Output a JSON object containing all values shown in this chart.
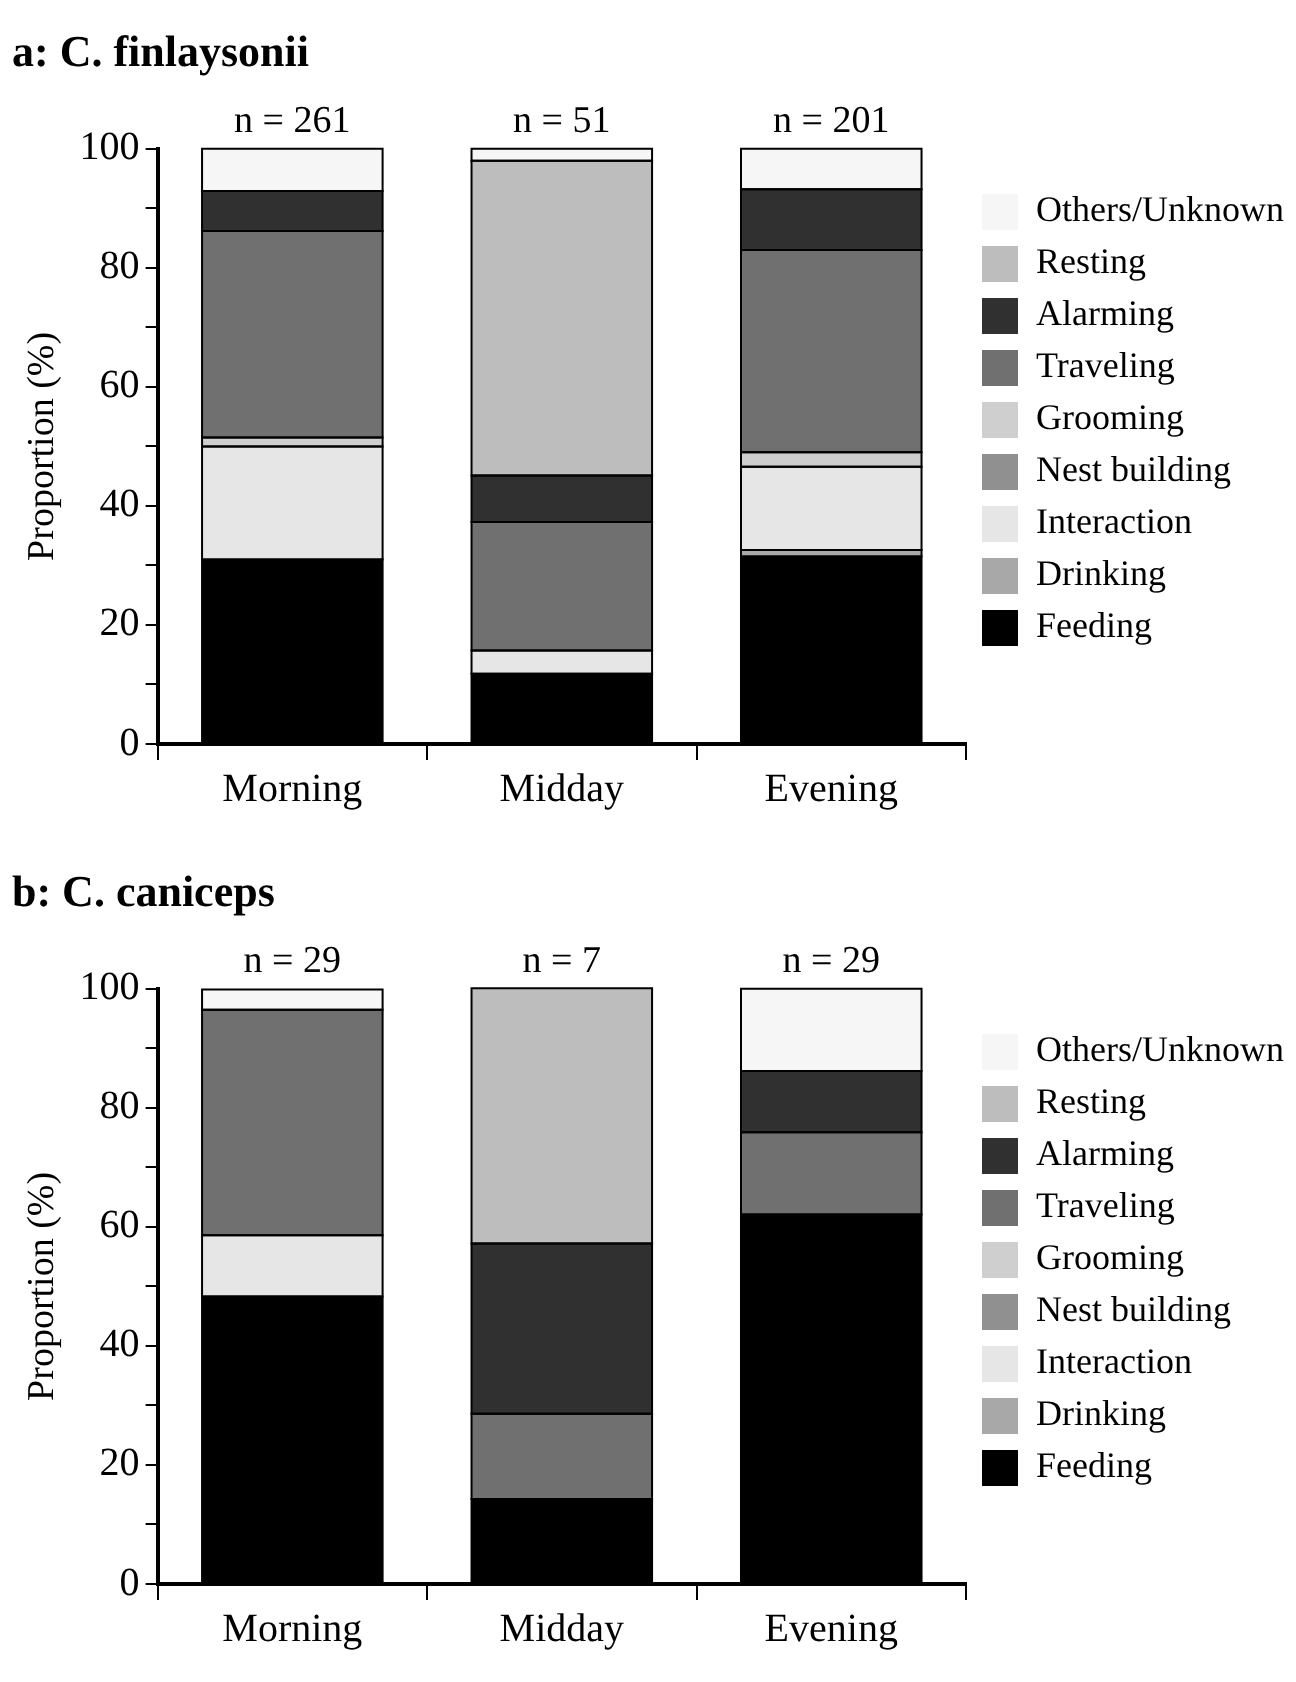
{
  "chart_data": [
    {
      "type": "bar",
      "title": "a: C. finlaysonii",
      "ylabel": "Proportion (%)",
      "categories": [
        "Morning",
        "Midday",
        "Evening"
      ],
      "stacked": true,
      "legend": "right",
      "grid": false,
      "ylim": [
        0,
        100
      ],
      "yticks": [
        0,
        {
          "value": 10,
          "label": null
        },
        20,
        {
          "value": 30,
          "label": null
        },
        40,
        {
          "value": 50,
          "label": null
        },
        60,
        {
          "value": 70,
          "label": null
        },
        80,
        {
          "value": 90,
          "label": null
        },
        100
      ],
      "annotations": [
        {
          "text": "n = 261",
          "x": "Morning",
          "y": 100
        },
        {
          "text": "n = 51",
          "x": "Midday",
          "y": 100
        },
        {
          "text": "n = 201",
          "x": "Evening",
          "y": 100
        }
      ],
      "series": [
        {
          "name": "Feeding",
          "color": "#000000",
          "values": [
            31,
            11.8,
            31.5
          ]
        },
        {
          "name": "Drinking",
          "color": "#a8a8a8",
          "values": [
            0,
            0,
            1.1
          ]
        },
        {
          "name": "Interaction",
          "color": "#e6e6e6",
          "values": [
            19,
            3.9,
            14
          ]
        },
        {
          "name": "Nest building",
          "color": "#909090",
          "values": [
            0,
            0,
            0
          ]
        },
        {
          "name": "Grooming",
          "color": "#cfcfcf",
          "values": [
            1.5,
            0,
            2.4
          ]
        },
        {
          "name": "Traveling",
          "color": "#707070",
          "values": [
            34.7,
            21.6,
            34
          ]
        },
        {
          "name": "Alarming",
          "color": "#303030",
          "values": [
            6.7,
            7.8,
            10.2
          ]
        },
        {
          "name": "Resting",
          "color": "#bdbdbd",
          "values": [
            0,
            52.9,
            0
          ]
        },
        {
          "name": "Others/Unknown",
          "color": "#f6f6f6",
          "values": [
            7.1,
            2,
            6.8
          ]
        }
      ]
    },
    {
      "type": "bar",
      "title": "b: C. caniceps",
      "ylabel": "Proportion (%)",
      "categories": [
        "Morning",
        "Midday",
        "Evening"
      ],
      "stacked": true,
      "legend": "right",
      "grid": false,
      "ylim": [
        0,
        100
      ],
      "yticks": [
        0,
        {
          "value": 10,
          "label": null
        },
        20,
        {
          "value": 30,
          "label": null
        },
        40,
        {
          "value": 50,
          "label": null
        },
        60,
        {
          "value": 70,
          "label": null
        },
        80,
        {
          "value": 90,
          "label": null
        },
        100
      ],
      "annotations": [
        {
          "text": "n = 29",
          "x": "Morning",
          "y": 100
        },
        {
          "text": "n = 7",
          "x": "Midday",
          "y": 100
        },
        {
          "text": "n = 29",
          "x": "Evening",
          "y": 100
        }
      ],
      "series": [
        {
          "name": "Feeding",
          "color": "#000000",
          "values": [
            48.3,
            14.3,
            62.1
          ]
        },
        {
          "name": "Drinking",
          "color": "#a8a8a8",
          "values": [
            0,
            0,
            0
          ]
        },
        {
          "name": "Interaction",
          "color": "#e6e6e6",
          "values": [
            10.3,
            0,
            0
          ]
        },
        {
          "name": "Nest building",
          "color": "#909090",
          "values": [
            0,
            0,
            0
          ]
        },
        {
          "name": "Grooming",
          "color": "#cfcfcf",
          "values": [
            0,
            0,
            0
          ]
        },
        {
          "name": "Traveling",
          "color": "#707070",
          "values": [
            37.9,
            14.3,
            13.8
          ]
        },
        {
          "name": "Alarming",
          "color": "#303030",
          "values": [
            0,
            28.6,
            10.3
          ]
        },
        {
          "name": "Resting",
          "color": "#bdbdbd",
          "values": [
            0,
            42.9,
            0
          ]
        },
        {
          "name": "Others/Unknown",
          "color": "#f6f6f6",
          "values": [
            3.4,
            0,
            13.8
          ]
        }
      ]
    }
  ]
}
